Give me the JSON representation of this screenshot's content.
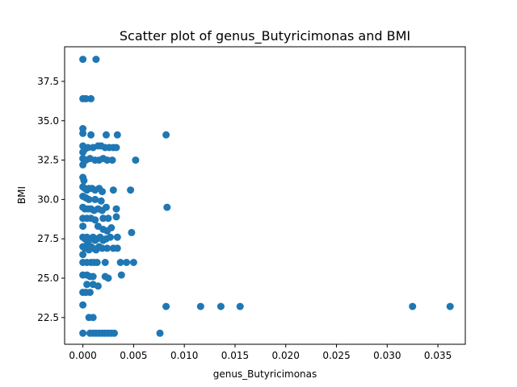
{
  "chart_data": {
    "type": "scatter",
    "title": "Scatter plot of genus_Butyricimonas and BMI",
    "xlabel": "genus_Butyricimonas",
    "ylabel": "BMI",
    "xlim": [
      -0.0018,
      0.0377
    ],
    "ylim": [
      20.8,
      39.7
    ],
    "xticks": [
      0.0,
      0.005,
      0.01,
      0.015,
      0.02,
      0.025,
      0.03,
      0.035
    ],
    "xtick_labels": [
      "0.000",
      "0.005",
      "0.010",
      "0.015",
      "0.020",
      "0.025",
      "0.030",
      "0.035"
    ],
    "yticks": [
      22.5,
      25.0,
      27.5,
      30.0,
      32.5,
      35.0,
      37.5
    ],
    "ytick_labels": [
      "22.5",
      "25.0",
      "27.5",
      "30.0",
      "32.5",
      "35.0",
      "37.5"
    ],
    "grid": false,
    "marker_color": "#1f77b4",
    "points": [
      [
        0.0,
        38.9
      ],
      [
        0.0013,
        38.9
      ],
      [
        0.0,
        36.4
      ],
      [
        0.0003,
        36.4
      ],
      [
        0.0008,
        36.4
      ],
      [
        0.0,
        34.5
      ],
      [
        0.0,
        34.2
      ],
      [
        0.0008,
        34.1
      ],
      [
        0.0023,
        34.1
      ],
      [
        0.0034,
        34.1
      ],
      [
        0.0082,
        34.1
      ],
      [
        0.0,
        33.4
      ],
      [
        0.0002,
        33.2
      ],
      [
        0.0005,
        33.3
      ],
      [
        0.001,
        33.3
      ],
      [
        0.0015,
        33.4
      ],
      [
        0.0018,
        33.4
      ],
      [
        0.0022,
        33.3
      ],
      [
        0.0026,
        33.3
      ],
      [
        0.003,
        33.3
      ],
      [
        0.0033,
        33.3
      ],
      [
        0.0,
        33.0
      ],
      [
        0.0,
        32.6
      ],
      [
        0.0003,
        32.5
      ],
      [
        0.0007,
        32.6
      ],
      [
        0.0012,
        32.5
      ],
      [
        0.0016,
        32.5
      ],
      [
        0.002,
        32.6
      ],
      [
        0.0024,
        32.5
      ],
      [
        0.0029,
        32.5
      ],
      [
        0.0052,
        32.5
      ],
      [
        0.0,
        32.2
      ],
      [
        0.0,
        31.4
      ],
      [
        0.0001,
        31.2
      ],
      [
        0.0,
        30.8
      ],
      [
        0.0002,
        30.7
      ],
      [
        0.0004,
        30.6
      ],
      [
        0.0006,
        30.7
      ],
      [
        0.0009,
        30.7
      ],
      [
        0.0012,
        30.6
      ],
      [
        0.0016,
        30.7
      ],
      [
        0.0019,
        30.5
      ],
      [
        0.003,
        30.6
      ],
      [
        0.0047,
        30.6
      ],
      [
        0.0,
        30.2
      ],
      [
        0.0003,
        30.1
      ],
      [
        0.0006,
        30.0
      ],
      [
        0.0012,
        30.0
      ],
      [
        0.0018,
        29.9
      ],
      [
        0.0,
        29.5
      ],
      [
        0.0002,
        29.4
      ],
      [
        0.0005,
        29.4
      ],
      [
        0.0008,
        29.4
      ],
      [
        0.0011,
        29.3
      ],
      [
        0.0015,
        29.4
      ],
      [
        0.0019,
        29.3
      ],
      [
        0.0023,
        29.5
      ],
      [
        0.0033,
        29.4
      ],
      [
        0.0083,
        29.5
      ],
      [
        0.0033,
        28.9
      ],
      [
        0.0,
        28.8
      ],
      [
        0.0004,
        28.8
      ],
      [
        0.0008,
        28.8
      ],
      [
        0.0012,
        28.7
      ],
      [
        0.002,
        28.8
      ],
      [
        0.0025,
        28.8
      ],
      [
        0.0,
        28.3
      ],
      [
        0.0015,
        28.3
      ],
      [
        0.002,
        28.1
      ],
      [
        0.0024,
        28.0
      ],
      [
        0.0028,
        28.2
      ],
      [
        0.0048,
        27.9
      ],
      [
        0.0,
        27.6
      ],
      [
        0.0002,
        27.5
      ],
      [
        0.0004,
        27.6
      ],
      [
        0.0006,
        27.4
      ],
      [
        0.0008,
        27.5
      ],
      [
        0.001,
        27.6
      ],
      [
        0.0012,
        27.4
      ],
      [
        0.0014,
        27.5
      ],
      [
        0.0017,
        27.6
      ],
      [
        0.002,
        27.4
      ],
      [
        0.0023,
        27.5
      ],
      [
        0.0027,
        27.6
      ],
      [
        0.0034,
        27.6
      ],
      [
        0.0,
        27.0
      ],
      [
        0.0002,
        26.9
      ],
      [
        0.0004,
        27.1
      ],
      [
        0.0006,
        26.8
      ],
      [
        0.0008,
        27.0
      ],
      [
        0.001,
        26.9
      ],
      [
        0.0013,
        26.8
      ],
      [
        0.0016,
        27.0
      ],
      [
        0.0019,
        26.9
      ],
      [
        0.0024,
        26.9
      ],
      [
        0.003,
        26.9
      ],
      [
        0.0034,
        26.9
      ],
      [
        0.0,
        26.5
      ],
      [
        0.0,
        26.0
      ],
      [
        0.0004,
        26.0
      ],
      [
        0.0008,
        26.0
      ],
      [
        0.0011,
        26.0
      ],
      [
        0.0014,
        26.0
      ],
      [
        0.0022,
        26.0
      ],
      [
        0.0037,
        26.0
      ],
      [
        0.0043,
        26.0
      ],
      [
        0.005,
        26.0
      ],
      [
        0.0,
        25.2
      ],
      [
        0.0004,
        25.2
      ],
      [
        0.0007,
        25.1
      ],
      [
        0.001,
        25.1
      ],
      [
        0.0022,
        25.1
      ],
      [
        0.0025,
        25.0
      ],
      [
        0.0038,
        25.2
      ],
      [
        0.0004,
        24.6
      ],
      [
        0.001,
        24.6
      ],
      [
        0.0015,
        24.5
      ],
      [
        0.0007,
        24.1
      ],
      [
        0.0,
        24.1
      ],
      [
        0.0003,
        24.1
      ],
      [
        0.0,
        23.3
      ],
      [
        0.0082,
        23.2
      ],
      [
        0.0116,
        23.2
      ],
      [
        0.0136,
        23.2
      ],
      [
        0.0155,
        23.2
      ],
      [
        0.0325,
        23.2
      ],
      [
        0.0362,
        23.2
      ],
      [
        0.0006,
        22.5
      ],
      [
        0.001,
        22.5
      ],
      [
        0.0,
        21.5
      ],
      [
        0.0007,
        21.5
      ],
      [
        0.001,
        21.5
      ],
      [
        0.0013,
        21.5
      ],
      [
        0.0016,
        21.5
      ],
      [
        0.0019,
        21.5
      ],
      [
        0.0022,
        21.5
      ],
      [
        0.0025,
        21.5
      ],
      [
        0.0028,
        21.5
      ],
      [
        0.0031,
        21.5
      ],
      [
        0.0076,
        21.5
      ]
    ]
  }
}
